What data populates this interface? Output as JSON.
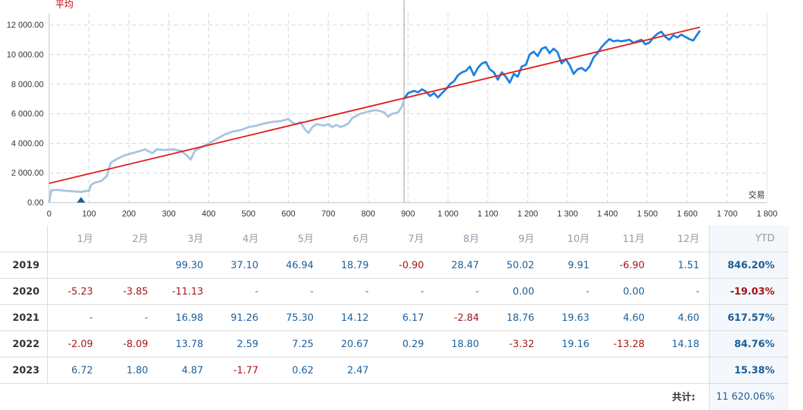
{
  "chart_data": {
    "type": "line",
    "avg_label": "平均",
    "xlabel": "交易",
    "ylabel": "",
    "xlim": [
      0,
      1800
    ],
    "ylim": [
      0,
      12800
    ],
    "x_ticks": [
      "0",
      "100",
      "200",
      "300",
      "400",
      "500",
      "600",
      "700",
      "800",
      "900",
      "1 000",
      "1 100",
      "1 200",
      "1 300",
      "1 400",
      "1 500",
      "1 600",
      "1 700",
      "1 800"
    ],
    "y_ticks": [
      "0.00",
      "2 000.00",
      "4 000.00",
      "6 000.00",
      "8 000.00",
      "10 000.00",
      "12 000.00"
    ],
    "grid": true,
    "split_x": 890,
    "series": [
      {
        "color": "#a7c4e0",
        "points": [
          [
            0,
            0
          ],
          [
            5,
            820
          ],
          [
            20,
            860
          ],
          [
            40,
            800
          ],
          [
            60,
            760
          ],
          [
            80,
            720
          ],
          [
            95,
            800
          ],
          [
            100,
            780
          ],
          [
            105,
            1200
          ],
          [
            115,
            1350
          ],
          [
            130,
            1450
          ],
          [
            145,
            1800
          ],
          [
            150,
            2300
          ],
          [
            155,
            2700
          ],
          [
            170,
            2950
          ],
          [
            190,
            3200
          ],
          [
            210,
            3350
          ],
          [
            230,
            3500
          ],
          [
            240,
            3600
          ],
          [
            250,
            3450
          ],
          [
            260,
            3350
          ],
          [
            270,
            3600
          ],
          [
            290,
            3550
          ],
          [
            310,
            3600
          ],
          [
            330,
            3500
          ],
          [
            345,
            3200
          ],
          [
            355,
            2900
          ],
          [
            365,
            3500
          ],
          [
            380,
            3700
          ],
          [
            400,
            4000
          ],
          [
            420,
            4300
          ],
          [
            440,
            4600
          ],
          [
            460,
            4800
          ],
          [
            480,
            4900
          ],
          [
            500,
            5100
          ],
          [
            520,
            5200
          ],
          [
            540,
            5350
          ],
          [
            560,
            5450
          ],
          [
            580,
            5500
          ],
          [
            600,
            5650
          ],
          [
            610,
            5400
          ],
          [
            620,
            5300
          ],
          [
            630,
            5450
          ],
          [
            640,
            5000
          ],
          [
            650,
            4700
          ],
          [
            660,
            5100
          ],
          [
            670,
            5300
          ],
          [
            690,
            5200
          ],
          [
            700,
            5300
          ],
          [
            710,
            5100
          ],
          [
            720,
            5250
          ],
          [
            730,
            5100
          ],
          [
            740,
            5200
          ],
          [
            750,
            5350
          ],
          [
            760,
            5700
          ],
          [
            780,
            6000
          ],
          [
            800,
            6150
          ],
          [
            820,
            6250
          ],
          [
            840,
            6100
          ],
          [
            850,
            5800
          ],
          [
            860,
            6000
          ],
          [
            875,
            6100
          ],
          [
            885,
            6500
          ],
          [
            890,
            7000
          ]
        ]
      },
      {
        "color": "#1c82e0",
        "points": [
          [
            890,
            7000
          ],
          [
            900,
            7400
          ],
          [
            915,
            7550
          ],
          [
            925,
            7450
          ],
          [
            935,
            7650
          ],
          [
            945,
            7500
          ],
          [
            955,
            7200
          ],
          [
            965,
            7400
          ],
          [
            975,
            7100
          ],
          [
            985,
            7400
          ],
          [
            995,
            7650
          ],
          [
            1005,
            8000
          ],
          [
            1015,
            8200
          ],
          [
            1025,
            8600
          ],
          [
            1035,
            8800
          ],
          [
            1045,
            8900
          ],
          [
            1055,
            9200
          ],
          [
            1065,
            8600
          ],
          [
            1075,
            9100
          ],
          [
            1085,
            9400
          ],
          [
            1095,
            9500
          ],
          [
            1105,
            9000
          ],
          [
            1115,
            8800
          ],
          [
            1125,
            8300
          ],
          [
            1135,
            8800
          ],
          [
            1145,
            8500
          ],
          [
            1155,
            8100
          ],
          [
            1165,
            8700
          ],
          [
            1175,
            8500
          ],
          [
            1185,
            9200
          ],
          [
            1195,
            9300
          ],
          [
            1205,
            10000
          ],
          [
            1215,
            10200
          ],
          [
            1225,
            9900
          ],
          [
            1235,
            10400
          ],
          [
            1245,
            10500
          ],
          [
            1255,
            10100
          ],
          [
            1265,
            10400
          ],
          [
            1275,
            10150
          ],
          [
            1285,
            9400
          ],
          [
            1295,
            9700
          ],
          [
            1305,
            9300
          ],
          [
            1315,
            8700
          ],
          [
            1325,
            9000
          ],
          [
            1335,
            9100
          ],
          [
            1345,
            8900
          ],
          [
            1355,
            9200
          ],
          [
            1365,
            9800
          ],
          [
            1375,
            10100
          ],
          [
            1385,
            10500
          ],
          [
            1395,
            10800
          ],
          [
            1405,
            11050
          ],
          [
            1415,
            10900
          ],
          [
            1425,
            10950
          ],
          [
            1435,
            10900
          ],
          [
            1445,
            10950
          ],
          [
            1455,
            11000
          ],
          [
            1465,
            10800
          ],
          [
            1475,
            10900
          ],
          [
            1485,
            11000
          ],
          [
            1495,
            10700
          ],
          [
            1505,
            10800
          ],
          [
            1515,
            11150
          ],
          [
            1525,
            11400
          ],
          [
            1535,
            11550
          ],
          [
            1545,
            11200
          ],
          [
            1555,
            11000
          ],
          [
            1565,
            11300
          ],
          [
            1575,
            11150
          ],
          [
            1585,
            11350
          ],
          [
            1595,
            11200
          ],
          [
            1605,
            11050
          ],
          [
            1615,
            10950
          ],
          [
            1625,
            11350
          ],
          [
            1632,
            11620
          ]
        ]
      }
    ],
    "trend": {
      "color": "#e02020",
      "x0": 0,
      "y0": 1300,
      "x1": 1632,
      "y1": 11850
    },
    "marker": {
      "x": 80,
      "color": "#1a5e9a"
    }
  },
  "table": {
    "months": [
      "1月",
      "2月",
      "3月",
      "4月",
      "5月",
      "6月",
      "7月",
      "8月",
      "9月",
      "10月",
      "11月",
      "12月"
    ],
    "ytd_header": "YTD",
    "rows": [
      {
        "year": "2019",
        "cells": [
          "",
          "",
          "99.30",
          "37.10",
          "46.94",
          "18.79",
          "-0.90",
          "28.47",
          "50.02",
          "9.91",
          "-6.90",
          "1.51"
        ],
        "ytd": "846.20%"
      },
      {
        "year": "2020",
        "cells": [
          "-5.23",
          "-3.85",
          "-11.13",
          "-",
          "-",
          "-",
          "-",
          "-",
          "0.00",
          "-",
          "0.00",
          "-"
        ],
        "ytd": "-19.03%"
      },
      {
        "year": "2021",
        "cells": [
          "-",
          "-",
          "16.98",
          "91.26",
          "75.30",
          "14.12",
          "6.17",
          "-2.84",
          "18.76",
          "19.63",
          "4.60",
          "4.60"
        ],
        "ytd": "617.57%"
      },
      {
        "year": "2022",
        "cells": [
          "-2.09",
          "-8.09",
          "13.78",
          "2.59",
          "7.25",
          "20.67",
          "0.29",
          "18.80",
          "-3.32",
          "19.16",
          "-13.28",
          "14.18"
        ],
        "ytd": "84.76%"
      },
      {
        "year": "2023",
        "cells": [
          "6.72",
          "1.80",
          "4.87",
          "-1.77",
          "0.62",
          "2.47",
          "",
          "",
          "",
          "",
          "",
          ""
        ],
        "ytd": "15.38%"
      }
    ],
    "total_label": "共计:",
    "total_value": "11 620.06%"
  }
}
